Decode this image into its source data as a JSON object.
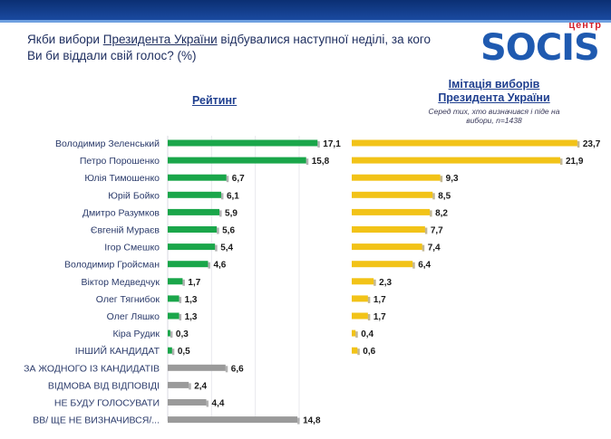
{
  "question": {
    "part1": "Якби вибори ",
    "link": "Президента України",
    "part2": " відбувалися наступної неділі, за кого Ви би віддали свій голос? (%)"
  },
  "logo": {
    "small": "центр",
    "word": "SOCIS"
  },
  "chart_data": [
    {
      "type": "bar",
      "title": "Рейтинг",
      "categories": [
        "Володимир Зеленський",
        "Петро Порошенко",
        "Юлія Тимошенко",
        "Юрій Бойко",
        "Дмитро Разумков",
        "Євгеній Мураєв",
        "Ігор Смешко",
        "Володимир Гройсман",
        "Віктор Медведчук",
        "Олег Тягнибок",
        "Олег Ляшко",
        "Кіра Рудик",
        "ІНШИЙ КАНДИДАТ",
        "ЗА ЖОДНОГО ІЗ КАНДИДАТІВ",
        "ВІДМОВА ВІД ВІДПОВІДІ",
        "НЕ БУДУ ГОЛОСУВАТИ",
        "ВВ/ ЩЕ НЕ ВИЗНАЧИВСЯ/..."
      ],
      "values": [
        17.1,
        15.8,
        6.7,
        6.1,
        5.9,
        5.6,
        5.4,
        4.6,
        1.7,
        1.3,
        1.3,
        0.3,
        0.5,
        6.6,
        2.4,
        4.4,
        14.8
      ],
      "value_labels": [
        "17,1",
        "15,8",
        "6,7",
        "6,1",
        "5,9",
        "5,6",
        "5,4",
        "4,6",
        "1,7",
        "1,3",
        "1,3",
        "0,3",
        "0,5",
        "6,6",
        "2,4",
        "4,4",
        "14,8"
      ],
      "colors": {
        "candidate": "#1aa64a",
        "other": "#9a9a9a"
      },
      "gray_from_index": 13,
      "xlim": [
        0,
        18
      ]
    },
    {
      "type": "bar",
      "title_line1": "Імітація виборів",
      "title_line2": "Президента України",
      "note": "Серед тих, хто визначився і піде на вибори, n=1438",
      "values": [
        23.7,
        21.9,
        9.3,
        8.5,
        8.2,
        7.7,
        7.4,
        6.4,
        2.3,
        1.7,
        1.7,
        0.4,
        0.6
      ],
      "value_labels": [
        "23,7",
        "21,9",
        "9,3",
        "8,5",
        "8,2",
        "7,7",
        "7,4",
        "6,4",
        "2,3",
        "1,7",
        "1,7",
        "0,4",
        "0,6"
      ],
      "color": "#f2c318",
      "xlim": [
        0,
        24
      ]
    }
  ]
}
